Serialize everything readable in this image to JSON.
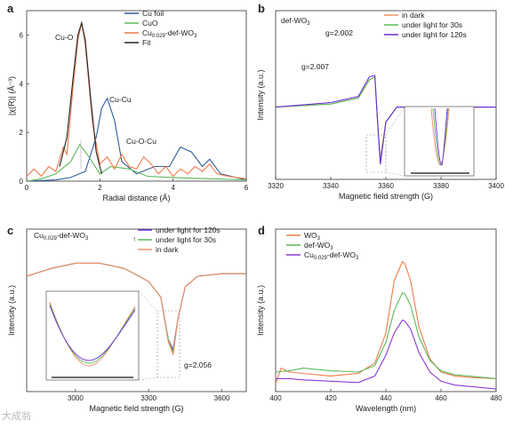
{
  "watermark": "大成翁",
  "chart_data": [
    {
      "panel": "a",
      "type": "line",
      "xlabel": "Radial distance (Å)",
      "ylabel": "|χ(R)| (Å⁻³)",
      "xlim": [
        0,
        6
      ],
      "ylim": [
        0,
        7
      ],
      "xticks": [
        0,
        2,
        4,
        6
      ],
      "yticks": [
        0,
        2,
        4,
        6
      ],
      "legend": [
        "Cu foil",
        "CuO",
        "Cu0.029-def-WO3",
        "Fit"
      ],
      "colors": [
        "#2f5b9a",
        "#5bb85b",
        "#f07a4a",
        "#222222"
      ],
      "annotations": [
        "Cu-O",
        "Cu-Cu",
        "Cu-O-Cu"
      ],
      "series": [
        {
          "name": "Cu foil",
          "x": [
            0,
            0.8,
            1.2,
            1.6,
            1.9,
            2.05,
            2.2,
            2.4,
            2.6,
            3.0,
            3.5,
            3.9,
            4.2,
            4.5,
            4.8,
            5.0,
            5.3,
            6.0
          ],
          "y": [
            0,
            0.05,
            0.15,
            0.4,
            1.8,
            3.0,
            3.4,
            2.5,
            0.8,
            0.3,
            0.6,
            0.6,
            1.4,
            1.2,
            0.6,
            0.9,
            0.3,
            0.05
          ]
        },
        {
          "name": "CuO",
          "x": [
            0,
            0.4,
            0.8,
            1.2,
            1.45,
            1.7,
            2.0,
            2.3,
            2.8,
            3.3,
            4.0,
            5.0,
            6.0
          ],
          "y": [
            0,
            0.1,
            0.3,
            0.8,
            1.5,
            1.0,
            0.3,
            0.6,
            0.5,
            0.2,
            0.15,
            0.1,
            0.05
          ]
        },
        {
          "name": "Cu0.029-def-WO3",
          "x": [
            0,
            0.2,
            0.4,
            0.6,
            0.8,
            1.0,
            1.1,
            1.25,
            1.4,
            1.5,
            1.6,
            1.8,
            2.0,
            2.2,
            2.4,
            2.6,
            2.8,
            3.0,
            3.2,
            3.4,
            3.6,
            3.8,
            4.0,
            4.2,
            4.4,
            4.6,
            4.8,
            5.0,
            5.2,
            5.5,
            6.0
          ],
          "y": [
            0.2,
            0.5,
            0.2,
            0.6,
            0.4,
            1.4,
            1.1,
            3.6,
            5.8,
            6.5,
            5.6,
            2.4,
            0.7,
            1.0,
            0.5,
            1.1,
            0.6,
            0.5,
            1.0,
            0.7,
            0.3,
            0.6,
            0.2,
            0.5,
            0.3,
            0.6,
            0.4,
            0.7,
            0.3,
            0.2,
            0.1
          ]
        },
        {
          "name": "Fit",
          "x": [
            0.9,
            1.1,
            1.25,
            1.4,
            1.5,
            1.6,
            1.75,
            1.9,
            2.05
          ],
          "y": [
            0.6,
            1.8,
            4.0,
            6.0,
            6.5,
            5.8,
            3.4,
            1.2,
            0.3
          ]
        }
      ]
    },
    {
      "panel": "b",
      "type": "line",
      "xlabel": "Magnetic field strength (G)",
      "ylabel": "Intensity (a.u.)",
      "xlim": [
        3320,
        3400
      ],
      "xticks": [
        3320,
        3340,
        3360,
        3380,
        3400
      ],
      "legend": [
        "in dark",
        "under light for 30s",
        "under light for 120s"
      ],
      "colors": [
        "#f0906a",
        "#5bb85b",
        "#6a2fd6"
      ],
      "annotations": [
        "def-WO3",
        "g=2.002",
        "g=2.007"
      ],
      "series": [
        {
          "name": "in dark",
          "x": [
            3320,
            3340,
            3350,
            3354,
            3356,
            3357,
            3358,
            3360,
            3364,
            3370,
            3380,
            3400
          ],
          "y": [
            0.0,
            0.1,
            0.3,
            0.9,
            1.0,
            -0.5,
            -1.7,
            -0.5,
            0.0,
            0.0,
            0.0,
            0.0
          ]
        },
        {
          "name": "under light for 30s",
          "x": [
            3320,
            3340,
            3350,
            3354,
            3356,
            3357,
            3358,
            3360,
            3364,
            3370,
            3380,
            3400
          ],
          "y": [
            0.0,
            0.1,
            0.3,
            0.9,
            1.0,
            -0.5,
            -1.8,
            -0.5,
            0.0,
            0.0,
            0.0,
            0.0
          ]
        },
        {
          "name": "under light for 120s",
          "x": [
            3320,
            3340,
            3350,
            3354,
            3356,
            3357,
            3358,
            3360,
            3364,
            3370,
            3380,
            3400
          ],
          "y": [
            0.0,
            0.15,
            0.35,
            1.0,
            1.05,
            -0.5,
            -1.9,
            -0.5,
            0.0,
            0.0,
            0.0,
            0.0
          ]
        }
      ]
    },
    {
      "panel": "c",
      "type": "line",
      "xlabel": "Magnetic field strength (G)",
      "ylabel": "Intensity (a.u.)",
      "xlim": [
        2800,
        3700
      ],
      "xticks": [
        3000,
        3300,
        3600
      ],
      "legend": [
        "under light for 120s",
        "under light for 30s",
        "in dark"
      ],
      "colors": [
        "#6a2fd6",
        "#5bb85b",
        "#f0906a"
      ],
      "annotations": [
        "Cu0.029-def-WO3",
        "g=2.056"
      ],
      "series": [
        {
          "name": "under light for 120s",
          "x": [
            2800,
            2900,
            3000,
            3100,
            3200,
            3300,
            3350,
            3380,
            3400,
            3420,
            3450,
            3500,
            3600,
            3700
          ],
          "y": [
            0.0,
            0.15,
            0.25,
            0.25,
            0.15,
            -0.1,
            -0.4,
            -1.2,
            -1.4,
            -0.8,
            -0.2,
            0.0,
            0.05,
            0.05
          ]
        },
        {
          "name": "under light for 30s",
          "x": [
            2800,
            2900,
            3000,
            3100,
            3200,
            3300,
            3350,
            3380,
            3400,
            3420,
            3450,
            3500,
            3600,
            3700
          ],
          "y": [
            0.0,
            0.15,
            0.25,
            0.25,
            0.15,
            -0.1,
            -0.4,
            -1.2,
            -1.45,
            -0.8,
            -0.2,
            0.0,
            0.05,
            0.05
          ]
        },
        {
          "name": "in dark",
          "x": [
            2800,
            2900,
            3000,
            3100,
            3200,
            3300,
            3350,
            3380,
            3400,
            3420,
            3450,
            3500,
            3600,
            3700
          ],
          "y": [
            0.0,
            0.15,
            0.25,
            0.25,
            0.15,
            -0.1,
            -0.4,
            -1.25,
            -1.5,
            -0.8,
            -0.2,
            0.0,
            0.05,
            0.05
          ]
        }
      ]
    },
    {
      "panel": "d",
      "type": "line",
      "xlabel": "Wavelength (nm)",
      "ylabel": "Intensity (a.u.)",
      "xlim": [
        400,
        480
      ],
      "xticks": [
        400,
        420,
        440,
        460,
        480
      ],
      "legend": [
        "WO3",
        "def-WO3",
        "Cu0.029-def-WO3"
      ],
      "colors": [
        "#f07a4a",
        "#5bb85b",
        "#8a3ad6"
      ],
      "series": [
        {
          "name": "WO3",
          "x": [
            400,
            402,
            405,
            410,
            420,
            430,
            436,
            440,
            443,
            446,
            447,
            449,
            452,
            456,
            460,
            465,
            470,
            480
          ],
          "y": [
            0.06,
            0.18,
            0.15,
            0.14,
            0.12,
            0.14,
            0.22,
            0.45,
            0.85,
            1.0,
            0.98,
            0.85,
            0.5,
            0.25,
            0.15,
            0.12,
            0.11,
            0.1
          ]
        },
        {
          "name": "def-WO3",
          "x": [
            400,
            405,
            410,
            420,
            430,
            436,
            440,
            443,
            446,
            447,
            449,
            452,
            456,
            460,
            465,
            470,
            480
          ],
          "y": [
            0.15,
            0.16,
            0.18,
            0.16,
            0.15,
            0.2,
            0.38,
            0.62,
            0.76,
            0.75,
            0.66,
            0.42,
            0.24,
            0.16,
            0.13,
            0.12,
            0.1
          ]
        },
        {
          "name": "Cu0.029-def-WO3",
          "x": [
            400,
            405,
            410,
            420,
            430,
            436,
            440,
            443,
            446,
            447,
            449,
            452,
            456,
            460,
            465,
            470,
            480
          ],
          "y": [
            0.1,
            0.1,
            0.09,
            0.08,
            0.07,
            0.12,
            0.28,
            0.45,
            0.55,
            0.54,
            0.48,
            0.3,
            0.15,
            0.08,
            0.05,
            0.04,
            0.02
          ]
        }
      ]
    }
  ]
}
